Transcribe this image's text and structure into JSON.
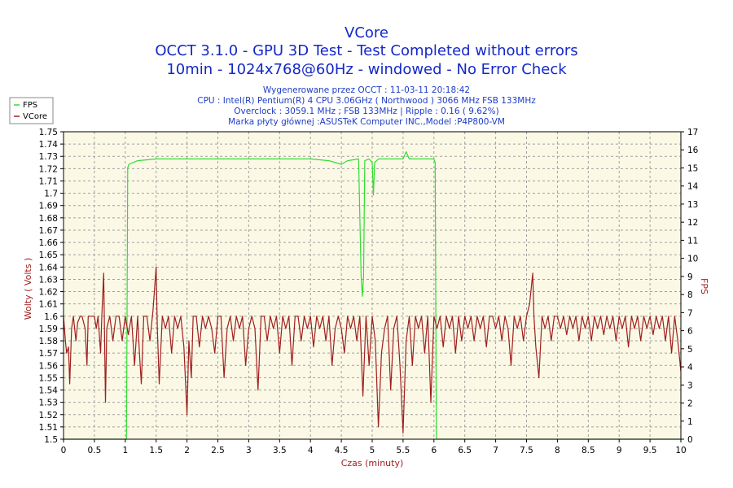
{
  "chart_data": {
    "type": "line",
    "title": "VCore",
    "subtitle_lines": [
      "OCCT 3.1.0 - GPU 3D Test - Test Completed without errors",
      "10min - 1024x768@60Hz - windowed - No Error Check"
    ],
    "info_lines": [
      "Wygenerowane przez OCCT : 11-03-11 20:18:42",
      "CPU : Intel(R) Pentium(R) 4 CPU 3.06GHz ( Northwood ) 3066 MHz FSB 133MHz",
      "Overclock : 3059.1 MHz ; FSB 133MHz | Ripple : 0.16 ( 9.62%)",
      "Marka płyty głównej :ASUSTeK Computer INC.,Model :P4P800-VM"
    ],
    "xlabel": "Czas (minuty)",
    "ylabel_left": "Wolty ( Volts )",
    "ylabel_right": "FPS",
    "xlim": [
      0,
      10
    ],
    "ylim_left": [
      1.5,
      1.75
    ],
    "ylim_right": [
      0,
      17
    ],
    "x_ticks": [
      "0",
      "0.5",
      "1",
      "1.5",
      "2",
      "2.5",
      "3",
      "3.5",
      "4",
      "4.5",
      "5",
      "5.5",
      "6",
      "6.5",
      "7",
      "7.5",
      "8",
      "8.5",
      "9",
      "9.5",
      "10"
    ],
    "y_ticks_left": [
      "1.5",
      "1.51",
      "1.52",
      "1.53",
      "1.54",
      "1.55",
      "1.56",
      "1.57",
      "1.58",
      "1.59",
      "1.6",
      "1.61",
      "1.62",
      "1.63",
      "1.64",
      "1.65",
      "1.66",
      "1.67",
      "1.68",
      "1.69",
      "1.7",
      "1.71",
      "1.72",
      "1.73",
      "1.74",
      "1.75"
    ],
    "y_ticks_right": [
      "0",
      "1",
      "2",
      "3",
      "4",
      "5",
      "6",
      "7",
      "8",
      "9",
      "10",
      "11",
      "12",
      "13",
      "14",
      "15",
      "16",
      "17"
    ],
    "grid": true,
    "legend_placement": "top-left",
    "series": [
      {
        "name": "FPS",
        "axis": "right",
        "color": "#32dc32",
        "points": [
          [
            0,
            0
          ],
          [
            1.02,
            0
          ],
          [
            1.04,
            15
          ],
          [
            1.06,
            15.2
          ],
          [
            1.2,
            15.4
          ],
          [
            1.5,
            15.5
          ],
          [
            2,
            15.5
          ],
          [
            2.5,
            15.5
          ],
          [
            3,
            15.5
          ],
          [
            3.5,
            15.5
          ],
          [
            4,
            15.5
          ],
          [
            4.3,
            15.4
          ],
          [
            4.5,
            15.2
          ],
          [
            4.6,
            15.4
          ],
          [
            4.78,
            15.5
          ],
          [
            4.82,
            9
          ],
          [
            4.84,
            7.9
          ],
          [
            4.86,
            9
          ],
          [
            4.88,
            15.4
          ],
          [
            4.95,
            15.5
          ],
          [
            5.0,
            15.3
          ],
          [
            5.02,
            13.5
          ],
          [
            5.04,
            15.3
          ],
          [
            5.1,
            15.5
          ],
          [
            5.5,
            15.5
          ],
          [
            5.55,
            15.9
          ],
          [
            5.6,
            15.5
          ],
          [
            6.0,
            15.5
          ],
          [
            6.02,
            15.3
          ],
          [
            6.04,
            0
          ],
          [
            10,
            0
          ]
        ]
      },
      {
        "name": "VCore",
        "axis": "left",
        "color": "#a01e1e",
        "points": [
          [
            0,
            1.6
          ],
          [
            0.03,
            1.58
          ],
          [
            0.05,
            1.57
          ],
          [
            0.08,
            1.575
          ],
          [
            0.1,
            1.545
          ],
          [
            0.13,
            1.59
          ],
          [
            0.16,
            1.6
          ],
          [
            0.2,
            1.58
          ],
          [
            0.23,
            1.595
          ],
          [
            0.27,
            1.6
          ],
          [
            0.3,
            1.6
          ],
          [
            0.35,
            1.59
          ],
          [
            0.38,
            1.56
          ],
          [
            0.4,
            1.6
          ],
          [
            0.45,
            1.6
          ],
          [
            0.5,
            1.6
          ],
          [
            0.53,
            1.59
          ],
          [
            0.56,
            1.6
          ],
          [
            0.6,
            1.57
          ],
          [
            0.62,
            1.6
          ],
          [
            0.65,
            1.635
          ],
          [
            0.68,
            1.53
          ],
          [
            0.7,
            1.59
          ],
          [
            0.75,
            1.6
          ],
          [
            0.8,
            1.58
          ],
          [
            0.85,
            1.6
          ],
          [
            0.9,
            1.6
          ],
          [
            0.95,
            1.58
          ],
          [
            1.0,
            1.6
          ],
          [
            1.05,
            1.585
          ],
          [
            1.1,
            1.6
          ],
          [
            1.15,
            1.56
          ],
          [
            1.2,
            1.6
          ],
          [
            1.23,
            1.57
          ],
          [
            1.26,
            1.545
          ],
          [
            1.3,
            1.6
          ],
          [
            1.35,
            1.6
          ],
          [
            1.4,
            1.58
          ],
          [
            1.45,
            1.605
          ],
          [
            1.5,
            1.64
          ],
          [
            1.52,
            1.59
          ],
          [
            1.55,
            1.545
          ],
          [
            1.6,
            1.6
          ],
          [
            1.65,
            1.59
          ],
          [
            1.7,
            1.6
          ],
          [
            1.75,
            1.57
          ],
          [
            1.8,
            1.6
          ],
          [
            1.85,
            1.59
          ],
          [
            1.9,
            1.6
          ],
          [
            1.95,
            1.575
          ],
          [
            2.0,
            1.52
          ],
          [
            2.03,
            1.58
          ],
          [
            2.07,
            1.55
          ],
          [
            2.1,
            1.6
          ],
          [
            2.15,
            1.6
          ],
          [
            2.2,
            1.575
          ],
          [
            2.25,
            1.6
          ],
          [
            2.3,
            1.59
          ],
          [
            2.35,
            1.6
          ],
          [
            2.4,
            1.59
          ],
          [
            2.45,
            1.57
          ],
          [
            2.5,
            1.6
          ],
          [
            2.55,
            1.6
          ],
          [
            2.6,
            1.55
          ],
          [
            2.65,
            1.59
          ],
          [
            2.7,
            1.6
          ],
          [
            2.75,
            1.58
          ],
          [
            2.8,
            1.6
          ],
          [
            2.85,
            1.59
          ],
          [
            2.9,
            1.6
          ],
          [
            2.95,
            1.56
          ],
          [
            3.0,
            1.59
          ],
          [
            3.05,
            1.6
          ],
          [
            3.1,
            1.59
          ],
          [
            3.15,
            1.54
          ],
          [
            3.2,
            1.6
          ],
          [
            3.25,
            1.6
          ],
          [
            3.3,
            1.58
          ],
          [
            3.35,
            1.6
          ],
          [
            3.4,
            1.59
          ],
          [
            3.45,
            1.6
          ],
          [
            3.5,
            1.57
          ],
          [
            3.55,
            1.6
          ],
          [
            3.6,
            1.59
          ],
          [
            3.65,
            1.6
          ],
          [
            3.7,
            1.56
          ],
          [
            3.75,
            1.6
          ],
          [
            3.8,
            1.6
          ],
          [
            3.85,
            1.58
          ],
          [
            3.9,
            1.6
          ],
          [
            3.95,
            1.59
          ],
          [
            4.0,
            1.6
          ],
          [
            4.05,
            1.575
          ],
          [
            4.1,
            1.6
          ],
          [
            4.15,
            1.59
          ],
          [
            4.2,
            1.6
          ],
          [
            4.25,
            1.58
          ],
          [
            4.3,
            1.6
          ],
          [
            4.35,
            1.56
          ],
          [
            4.4,
            1.59
          ],
          [
            4.45,
            1.6
          ],
          [
            4.5,
            1.59
          ],
          [
            4.55,
            1.57
          ],
          [
            4.6,
            1.6
          ],
          [
            4.65,
            1.59
          ],
          [
            4.7,
            1.6
          ],
          [
            4.75,
            1.58
          ],
          [
            4.8,
            1.6
          ],
          [
            4.85,
            1.535
          ],
          [
            4.9,
            1.6
          ],
          [
            4.95,
            1.56
          ],
          [
            5.0,
            1.6
          ],
          [
            5.05,
            1.58
          ],
          [
            5.1,
            1.51
          ],
          [
            5.15,
            1.57
          ],
          [
            5.2,
            1.59
          ],
          [
            5.25,
            1.6
          ],
          [
            5.3,
            1.54
          ],
          [
            5.35,
            1.59
          ],
          [
            5.4,
            1.6
          ],
          [
            5.45,
            1.56
          ],
          [
            5.5,
            1.505
          ],
          [
            5.55,
            1.58
          ],
          [
            5.6,
            1.6
          ],
          [
            5.65,
            1.56
          ],
          [
            5.7,
            1.6
          ],
          [
            5.75,
            1.59
          ],
          [
            5.8,
            1.6
          ],
          [
            5.85,
            1.57
          ],
          [
            5.9,
            1.6
          ],
          [
            5.95,
            1.53
          ],
          [
            6.0,
            1.6
          ],
          [
            6.05,
            1.59
          ],
          [
            6.1,
            1.6
          ],
          [
            6.15,
            1.575
          ],
          [
            6.2,
            1.6
          ],
          [
            6.25,
            1.59
          ],
          [
            6.3,
            1.6
          ],
          [
            6.35,
            1.57
          ],
          [
            6.4,
            1.6
          ],
          [
            6.45,
            1.58
          ],
          [
            6.5,
            1.6
          ],
          [
            6.55,
            1.59
          ],
          [
            6.6,
            1.6
          ],
          [
            6.65,
            1.58
          ],
          [
            6.7,
            1.6
          ],
          [
            6.75,
            1.59
          ],
          [
            6.8,
            1.6
          ],
          [
            6.85,
            1.575
          ],
          [
            6.9,
            1.6
          ],
          [
            6.95,
            1.6
          ],
          [
            7.0,
            1.59
          ],
          [
            7.05,
            1.6
          ],
          [
            7.1,
            1.58
          ],
          [
            7.15,
            1.6
          ],
          [
            7.2,
            1.59
          ],
          [
            7.25,
            1.56
          ],
          [
            7.3,
            1.6
          ],
          [
            7.35,
            1.59
          ],
          [
            7.4,
            1.6
          ],
          [
            7.45,
            1.58
          ],
          [
            7.5,
            1.6
          ],
          [
            7.55,
            1.61
          ],
          [
            7.6,
            1.635
          ],
          [
            7.62,
            1.6
          ],
          [
            7.65,
            1.575
          ],
          [
            7.7,
            1.55
          ],
          [
            7.75,
            1.6
          ],
          [
            7.8,
            1.59
          ],
          [
            7.85,
            1.6
          ],
          [
            7.9,
            1.58
          ],
          [
            7.95,
            1.6
          ],
          [
            8.0,
            1.6
          ],
          [
            8.05,
            1.59
          ],
          [
            8.1,
            1.6
          ],
          [
            8.15,
            1.585
          ],
          [
            8.2,
            1.6
          ],
          [
            8.25,
            1.59
          ],
          [
            8.3,
            1.6
          ],
          [
            8.35,
            1.58
          ],
          [
            8.4,
            1.6
          ],
          [
            8.45,
            1.59
          ],
          [
            8.5,
            1.6
          ],
          [
            8.55,
            1.58
          ],
          [
            8.6,
            1.6
          ],
          [
            8.65,
            1.59
          ],
          [
            8.7,
            1.6
          ],
          [
            8.75,
            1.585
          ],
          [
            8.8,
            1.6
          ],
          [
            8.85,
            1.59
          ],
          [
            8.9,
            1.6
          ],
          [
            8.95,
            1.58
          ],
          [
            9.0,
            1.6
          ],
          [
            9.05,
            1.59
          ],
          [
            9.1,
            1.6
          ],
          [
            9.15,
            1.575
          ],
          [
            9.2,
            1.6
          ],
          [
            9.25,
            1.59
          ],
          [
            9.3,
            1.6
          ],
          [
            9.35,
            1.58
          ],
          [
            9.4,
            1.6
          ],
          [
            9.45,
            1.59
          ],
          [
            9.5,
            1.6
          ],
          [
            9.55,
            1.585
          ],
          [
            9.6,
            1.6
          ],
          [
            9.65,
            1.59
          ],
          [
            9.7,
            1.6
          ],
          [
            9.75,
            1.58
          ],
          [
            9.8,
            1.6
          ],
          [
            9.85,
            1.57
          ],
          [
            9.9,
            1.6
          ],
          [
            9.95,
            1.58
          ],
          [
            10.0,
            1.555
          ]
        ]
      }
    ],
    "colors": {
      "plot_bg": "#fbf9e6",
      "grid": "#a0a0a0",
      "title": "#1428c8",
      "info": "#1e3cc8",
      "axis_label": "#a01e1e"
    }
  }
}
